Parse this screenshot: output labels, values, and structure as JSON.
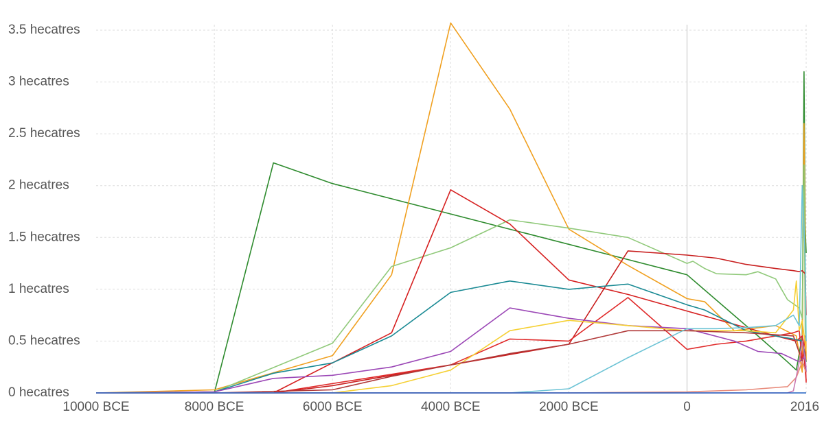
{
  "chart_data": {
    "type": "line",
    "title": "",
    "xlabel": "",
    "ylabel": "",
    "xlim": [
      -10000,
      2016
    ],
    "ylim": [
      0,
      3.5
    ],
    "x_ticks": [
      {
        "value": -10000,
        "label": "10000 BCE"
      },
      {
        "value": -8000,
        "label": "8000 BCE"
      },
      {
        "value": -6000,
        "label": "6000 BCE"
      },
      {
        "value": -4000,
        "label": "4000 BCE"
      },
      {
        "value": -2000,
        "label": "2000 BCE"
      },
      {
        "value": 0,
        "label": "0"
      },
      {
        "value": 2016,
        "label": "2016"
      }
    ],
    "y_ticks": [
      {
        "value": 0,
        "label": "0 hecatres"
      },
      {
        "value": 0.5,
        "label": "0.5 hecatres"
      },
      {
        "value": 1,
        "label": "1 hecatres"
      },
      {
        "value": 1.5,
        "label": "1.5 hecatres"
      },
      {
        "value": 2,
        "label": "2 hecatres"
      },
      {
        "value": 2.5,
        "label": "2.5 hecatres"
      },
      {
        "value": 3,
        "label": "3 hecatres"
      },
      {
        "value": 3.5,
        "label": "3.5 hecatres"
      }
    ],
    "grid": true,
    "series": [
      {
        "color": "#2e8b2e",
        "x": [
          -10000,
          -8000,
          -7000,
          -6000,
          0,
          1200,
          1700,
          1850,
          1950,
          1980,
          2000,
          2016
        ],
        "y": [
          0,
          0,
          2.22,
          2.02,
          1.14,
          0.55,
          0.3,
          0.22,
          0.55,
          3.1,
          1.6,
          1.35
        ]
      },
      {
        "color": "#f0a020",
        "x": [
          -10000,
          -8000,
          -6000,
          -5000,
          -4000,
          -3000,
          -2000,
          -1000,
          0,
          300,
          800,
          1500,
          1850,
          1950,
          1980,
          2016
        ],
        "y": [
          0,
          0.03,
          0.36,
          1.14,
          3.57,
          2.74,
          1.58,
          1.23,
          0.91,
          0.88,
          0.6,
          0.65,
          0.55,
          0.2,
          2.6,
          0.3
        ]
      },
      {
        "color": "#90c97a",
        "x": [
          -10000,
          -8000,
          -6000,
          -5000,
          -4000,
          -3000,
          -2000,
          -1000,
          0,
          100,
          300,
          500,
          1000,
          1200,
          1500,
          1700,
          1900,
          1950,
          1980,
          2000,
          2016
        ],
        "y": [
          0,
          0.01,
          0.48,
          1.22,
          1.4,
          1.67,
          1.59,
          1.5,
          1.25,
          1.27,
          1.2,
          1.15,
          1.14,
          1.17,
          1.1,
          0.9,
          0.82,
          0.72,
          2.2,
          0.6,
          0.5
        ]
      },
      {
        "color": "#d62020",
        "x": [
          -10000,
          -7000,
          -5000,
          -4000,
          -3000,
          -2000,
          -1000,
          0,
          1500,
          1850,
          1950,
          2016
        ],
        "y": [
          0,
          0,
          0.58,
          1.96,
          1.63,
          1.09,
          0.95,
          0.79,
          0.55,
          0.5,
          0.55,
          0.12
        ]
      },
      {
        "color": "#c81e1e",
        "x": [
          -10000,
          -7000,
          -6000,
          -4000,
          -2000,
          -1000,
          0,
          500,
          1000,
          1500,
          1800,
          1900,
          1950,
          2000,
          2016
        ],
        "y": [
          0,
          0,
          0.07,
          0.27,
          0.47,
          1.37,
          1.33,
          1.3,
          1.24,
          1.2,
          1.18,
          1.17,
          1.18,
          1.15,
          0.75
        ]
      },
      {
        "color": "#e02a2a",
        "x": [
          -10000,
          -7000,
          -5000,
          -4000,
          -3000,
          -2000,
          -1000,
          0,
          500,
          1000,
          1500,
          1800,
          1900,
          1950,
          1990,
          2016
        ],
        "y": [
          0,
          0,
          0.18,
          0.27,
          0.52,
          0.5,
          0.92,
          0.42,
          0.47,
          0.5,
          0.55,
          0.58,
          0.6,
          0.3,
          0.55,
          0.1
        ]
      },
      {
        "color": "#1a8a94",
        "x": [
          -10000,
          -8000,
          -7000,
          -6000,
          -5000,
          -4000,
          -3000,
          -2000,
          -1000,
          0,
          300,
          1000,
          1500,
          1800,
          1950,
          2016
        ],
        "y": [
          0,
          0.01,
          0.19,
          0.29,
          0.55,
          0.97,
          1.08,
          1.0,
          1.05,
          0.85,
          0.8,
          0.6,
          0.55,
          0.52,
          0.5,
          0.3
        ]
      },
      {
        "color": "#9b47b6",
        "x": [
          -10000,
          -8000,
          -7000,
          -6000,
          -5000,
          -4000,
          -3000,
          -2000,
          -1000,
          0,
          800,
          1200,
          1600,
          1900,
          2000,
          2016
        ],
        "y": [
          0,
          0.01,
          0.14,
          0.17,
          0.25,
          0.4,
          0.82,
          0.72,
          0.65,
          0.62,
          0.5,
          0.4,
          0.38,
          0.3,
          0.35,
          0.2
        ]
      },
      {
        "color": "#f5d033",
        "x": [
          -10000,
          -6000,
          -5000,
          -4000,
          -3000,
          -2000,
          -1000,
          0,
          1000,
          1500,
          1800,
          1850,
          1900,
          1950,
          2016
        ],
        "y": [
          0,
          0,
          0.07,
          0.22,
          0.6,
          0.7,
          0.65,
          0.6,
          0.6,
          0.58,
          0.8,
          1.08,
          0.6,
          0.7,
          0.4
        ]
      },
      {
        "color": "#b03838",
        "x": [
          -10000,
          -8000,
          -6000,
          -5000,
          -4000,
          -3000,
          -2000,
          -1000,
          0,
          1000,
          1800,
          2016
        ],
        "y": [
          0,
          0,
          0.03,
          0.16,
          0.27,
          0.38,
          0.47,
          0.6,
          0.6,
          0.58,
          0.55,
          0.2
        ]
      },
      {
        "color": "#6cc3d5",
        "x": [
          -10000,
          -3000,
          -2000,
          -1000,
          0,
          500,
          1000,
          1500,
          1800,
          1900,
          1950,
          1980,
          2000,
          2016
        ],
        "y": [
          0,
          0,
          0.04,
          0.34,
          0.62,
          0.62,
          0.63,
          0.65,
          0.75,
          0.65,
          2.0,
          1.6,
          1.3,
          0.5
        ]
      },
      {
        "color": "#e88a7a",
        "x": [
          -10000,
          -2000,
          0,
          1000,
          1700,
          1850,
          1950,
          2016
        ],
        "y": [
          0,
          0,
          0.01,
          0.03,
          0.06,
          0.15,
          0.3,
          0.2
        ]
      },
      {
        "color": "#c97ab2",
        "x": [
          -10000,
          1700,
          1800,
          1900,
          1950,
          2016
        ],
        "y": [
          0,
          0,
          0.02,
          0.3,
          0.5,
          0.25
        ]
      },
      {
        "color": "#2060c0",
        "x": [
          -10000,
          2016
        ],
        "y": [
          0,
          0
        ]
      }
    ]
  }
}
